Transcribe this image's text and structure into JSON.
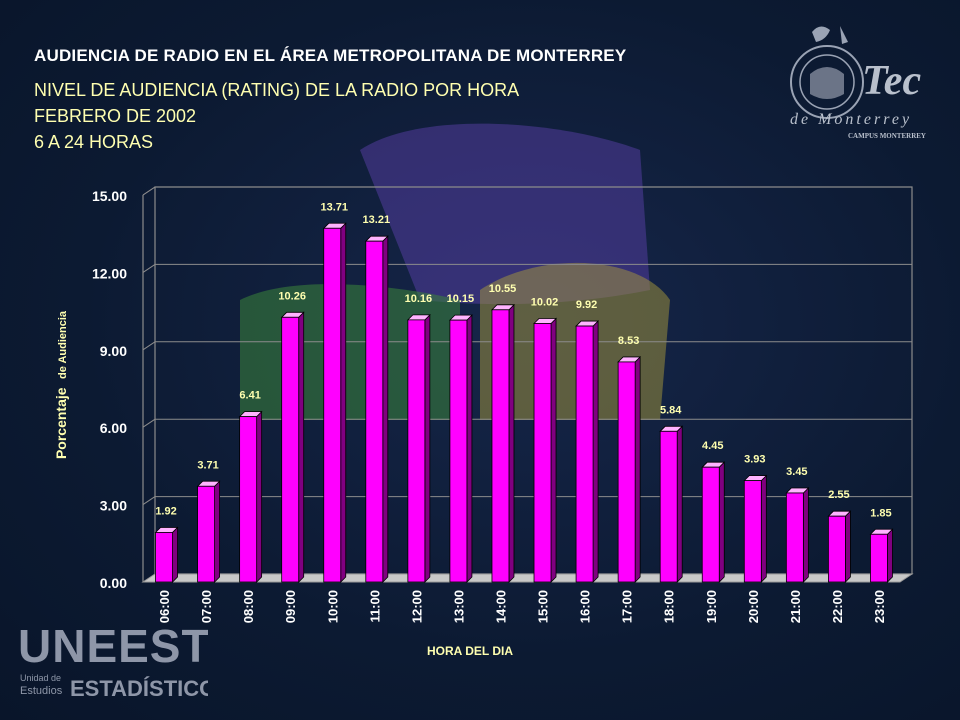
{
  "slide": {
    "title": "AUDIENCIA DE RADIO EN EL ÁREA METROPOLITANA DE MONTERREY",
    "subtitle_lines": [
      "NIVEL DE AUDIENCIA (RATING) DE LA RADIO POR HORA",
      "FEBRERO DE 2002",
      "6 A 24 HORAS"
    ]
  },
  "logos": {
    "tec": {
      "name": "Tec",
      "line2": "de Monterrey",
      "line3": "CAMPUS MONTERREY"
    },
    "uneest": {
      "name": "UNEEST",
      "line2a": "Unidad de",
      "line2b": "Estudios",
      "line2c": "ESTADÍSTICOS"
    }
  },
  "colors": {
    "background": "#0d1b33",
    "bar_front": "#ff00ff",
    "bar_side": "#800080",
    "bar_top": "#ffb3ff",
    "label_yellow": "#ffffb0",
    "grid": "#8c8c8c"
  },
  "chart_data": {
    "type": "bar",
    "title": "",
    "xlabel": "HORA DEL DIA",
    "ylabel_parts": [
      "Porcentaje",
      "de Audiencia"
    ],
    "ylim": [
      0,
      15
    ],
    "yticks": [
      "0.00",
      "3.00",
      "6.00",
      "9.00",
      "12.00",
      "15.00"
    ],
    "grid": true,
    "categories": [
      "06:00",
      "07:00",
      "08:00",
      "09:00",
      "10:00",
      "11:00",
      "12:00",
      "13:00",
      "14:00",
      "15:00",
      "16:00",
      "17:00",
      "18:00",
      "19:00",
      "20:00",
      "21:00",
      "22:00",
      "23:00"
    ],
    "values": [
      1.92,
      3.71,
      6.41,
      10.26,
      13.71,
      13.21,
      10.16,
      10.15,
      10.55,
      10.02,
      9.92,
      8.53,
      5.84,
      4.45,
      3.93,
      3.45,
      2.55,
      1.85
    ],
    "value_labels": [
      "1.92",
      "3.71",
      "6.41",
      "10.26",
      "13.71",
      "13.21",
      "10.16",
      "10.15",
      "10.55",
      "10.02",
      "9.92",
      "8.53",
      "5.84",
      "4.45",
      "3.93",
      "3.45",
      "2.55",
      "1.85"
    ]
  }
}
